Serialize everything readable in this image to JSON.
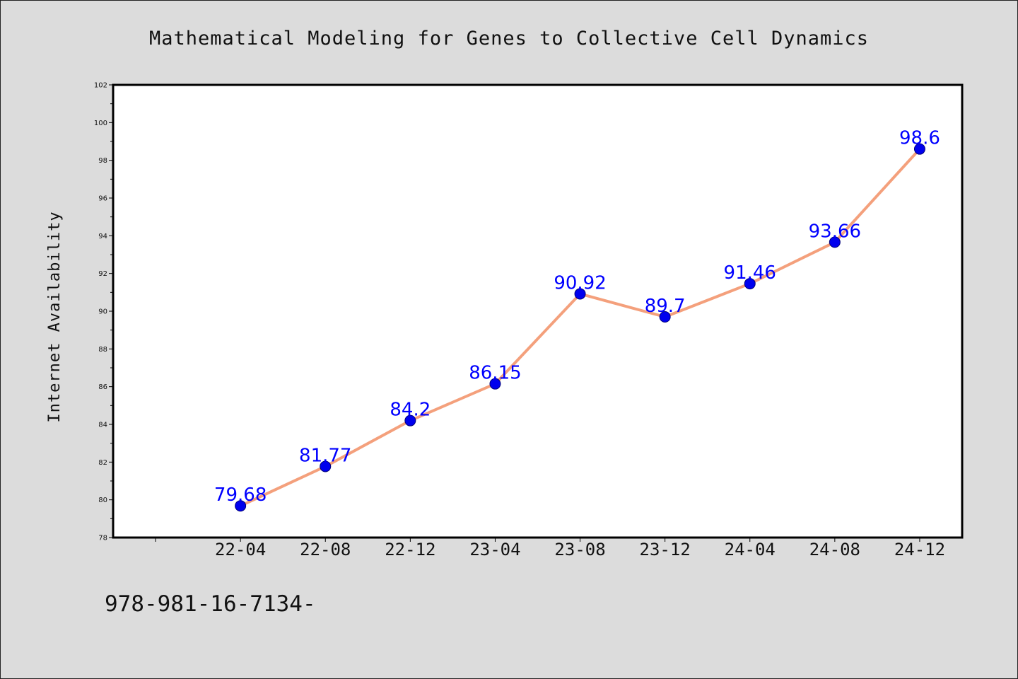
{
  "chart_data": {
    "type": "line",
    "title": "Mathematical Modeling for Genes to Collective Cell Dynamics",
    "xlabel": "",
    "ylabel": "Internet Availability",
    "categories": [
      "22-04",
      "22-08",
      "22-12",
      "23-04",
      "23-08",
      "23-12",
      "24-04",
      "24-08",
      "24-12"
    ],
    "series": [
      {
        "values": [
          79.68,
          81.77,
          84.2,
          86.15,
          90.92,
          89.7,
          91.46,
          93.66,
          98.6
        ],
        "line_color": "#f4a07c",
        "marker_color": "#0000ee",
        "label_color": "#0000ff"
      }
    ],
    "data_labels": [
      "79.68",
      "81.77",
      "84.2",
      "86.15",
      "90.92",
      "89.7",
      "91.46",
      "93.66",
      "98.6"
    ],
    "ylim": [
      78,
      102
    ],
    "yticks": [
      78,
      80,
      82,
      84,
      86,
      88,
      90,
      92,
      94,
      96,
      98,
      100,
      102
    ],
    "grid": false,
    "legend": "none"
  },
  "footer": {
    "text": "978-981-16-7134-"
  },
  "colors": {
    "background": "#dcdcdc",
    "plot_background": "#ffffff",
    "axis": "#000000"
  }
}
